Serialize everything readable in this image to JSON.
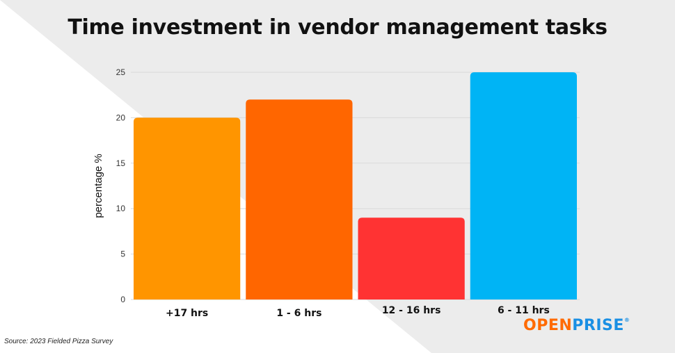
{
  "title": "Time investment in vendor management tasks",
  "source": "Source: 2023 Fielded Pizza Survey",
  "logo": {
    "part1": "OPEN",
    "part2": "PRISE",
    "mark": "®"
  },
  "chart_data": {
    "type": "bar",
    "title": "Time investment in vendor management tasks",
    "categories": [
      "+17 hrs",
      "1 - 6 hrs",
      "12 - 16 hrs",
      "6 - 11 hrs"
    ],
    "values": [
      20,
      22,
      9,
      25
    ],
    "colors": [
      "#ff9500",
      "#ff6600",
      "#ff3333",
      "#00b4f5"
    ],
    "xlabel": "",
    "ylabel": "percentage %",
    "ylim": [
      0,
      25
    ],
    "yticks": [
      0,
      5,
      10,
      15,
      20,
      25
    ],
    "grid": true,
    "legend": "none"
  }
}
